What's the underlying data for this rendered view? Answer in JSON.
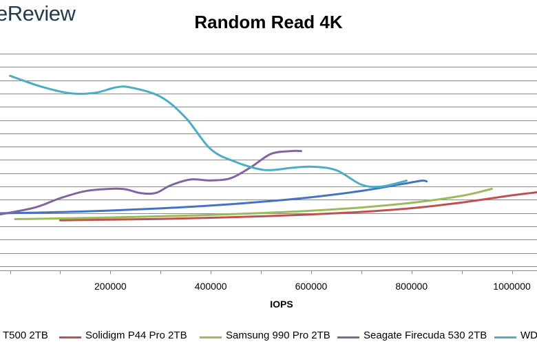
{
  "logo": {
    "text": "eReview"
  },
  "chart_data": {
    "type": "line",
    "title": "Random Read 4K",
    "xlabel": "IOPS",
    "ylabel": "",
    "xlim": [
      -20000,
      1050000
    ],
    "ylim": [
      -160,
      900
    ],
    "x_ticks": [
      200000,
      400000,
      600000,
      800000,
      1000000
    ],
    "x_tick_labels": [
      "200000",
      "400000",
      "600000",
      "800000",
      "1000000"
    ],
    "y_gridlines": [
      -142,
      -85,
      -28,
      29,
      86,
      143,
      200,
      257,
      314,
      371,
      428,
      485,
      542,
      599,
      656,
      713,
      770
    ],
    "grid": true,
    "legend_position": "bottom",
    "legend_labels": [
      "T500 2TB",
      "Solidigm P44 Pro 2TB",
      "Samsung 990 Pro 2TB",
      "Seagate Firecuda 530 2TB",
      "WD"
    ],
    "series": [
      {
        "name": "T500 2TB",
        "color": "#4472c4",
        "x": [
          -20000,
          100000,
          200000,
          300000,
          400000,
          500000,
          600000,
          700000,
          780000,
          820000,
          830000
        ],
        "y": [
          85,
          90,
          97,
          106,
          118,
          134,
          154,
          181,
          210,
          225,
          222
        ]
      },
      {
        "name": "Solidigm P44 Pro 2TB",
        "color": "#c0504d",
        "x": [
          100000,
          200000,
          300000,
          400000,
          500000,
          600000,
          700000,
          800000,
          900000,
          1000000,
          1050000
        ],
        "y": [
          55,
          58,
          61,
          66,
          72,
          80,
          91,
          107,
          131,
          162,
          175
        ]
      },
      {
        "name": "Samsung 990 Pro 2TB",
        "color": "#9bbb59",
        "x": [
          10000,
          100000,
          200000,
          300000,
          400000,
          500000,
          600000,
          700000,
          800000,
          900000,
          960000
        ],
        "y": [
          60,
          63,
          67,
          72,
          78,
          86,
          96,
          110,
          130,
          160,
          190
        ]
      },
      {
        "name": "Seagate Firecuda 530 2TB",
        "color": "#8064a2",
        "x": [
          -20000,
          50000,
          100000,
          150000,
          200000,
          230000,
          260000,
          290000,
          320000,
          360000,
          400000,
          440000,
          480000,
          520000,
          560000,
          580000
        ],
        "y": [
          80,
          110,
          150,
          180,
          190,
          188,
          172,
          172,
          205,
          230,
          226,
          236,
          283,
          340,
          352,
          352
        ]
      },
      {
        "name": "WD",
        "color": "#4bacc6",
        "x": [
          0,
          60000,
          120000,
          170000,
          210000,
          240000,
          300000,
          350000,
          400000,
          450000,
          500000,
          530000,
          560000,
          600000,
          650000,
          700000,
          740000,
          790000
        ],
        "y": [
          675,
          630,
          600,
          602,
          625,
          625,
          585,
          495,
          360,
          305,
          273,
          272,
          280,
          285,
          270,
          208,
          200,
          225
        ]
      }
    ]
  }
}
